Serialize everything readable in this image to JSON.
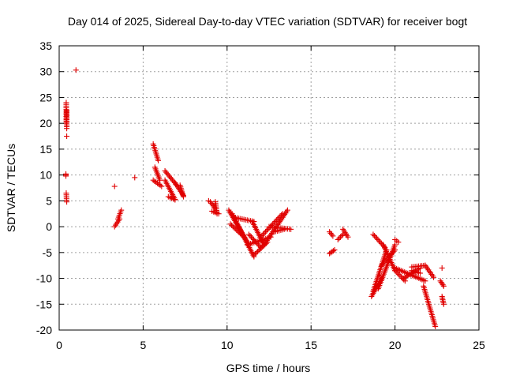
{
  "chart_data": {
    "type": "scatter",
    "title": "Day 014 of 2025, Sidereal Day-to-day VTEC variation (SDTVAR) for receiver bogt",
    "xlabel": "GPS time / hours",
    "ylabel": "SDTVAR / TECUs",
    "xlim": [
      0,
      25
    ],
    "ylim": [
      -20,
      35
    ],
    "xticks": [
      "0",
      "5",
      "10",
      "15",
      "20",
      "25"
    ],
    "yticks": [
      "-20",
      "-15",
      "-10",
      "-5",
      "0",
      "5",
      "10",
      "15",
      "20",
      "25",
      "30",
      "35"
    ],
    "grid": true,
    "marker": "+",
    "color": "#e00000",
    "series": [
      {
        "segments": [
          {
            "x": [
              0.42,
              0.42
            ],
            "y": [
              24.0,
              20.0
            ]
          },
          {
            "x": [
              0.45,
              0.45
            ],
            "y": [
              22.5,
              19.0
            ]
          },
          {
            "x": [
              0.4,
              0.4
            ],
            "y": [
              10.2,
              9.8
            ]
          },
          {
            "x": [
              0.42,
              0.45
            ],
            "y": [
              6.5,
              4.8
            ]
          },
          {
            "x": [
              3.3,
              3.6
            ],
            "y": [
              0.0,
              1.5
            ]
          },
          {
            "x": [
              3.5,
              3.7
            ],
            "y": [
              1.5,
              3.2
            ]
          },
          {
            "x": [
              5.6,
              5.9
            ],
            "y": [
              16.0,
              12.8
            ]
          },
          {
            "x": [
              5.7,
              6.0
            ],
            "y": [
              11.5,
              9.0
            ]
          },
          {
            "x": [
              5.6,
              6.1
            ],
            "y": [
              9.0,
              7.8
            ]
          },
          {
            "x": [
              6.3,
              7.0
            ],
            "y": [
              10.8,
              8.0
            ]
          },
          {
            "x": [
              6.3,
              6.9
            ],
            "y": [
              9.0,
              5.3
            ]
          },
          {
            "x": [
              6.5,
              6.9
            ],
            "y": [
              5.8,
              5.2
            ]
          },
          {
            "x": [
              6.9,
              7.4
            ],
            "y": [
              8.5,
              6.0
            ]
          },
          {
            "x": [
              7.2,
              7.4
            ],
            "y": [
              8.0,
              5.8
            ]
          },
          {
            "x": [
              9.0,
              9.3
            ],
            "y": [
              4.8,
              3.5
            ]
          },
          {
            "x": [
              9.3,
              9.4
            ],
            "y": [
              4.8,
              2.5
            ]
          },
          {
            "x": [
              9.1,
              9.5
            ],
            "y": [
              3.0,
              2.5
            ]
          },
          {
            "x": [
              10.1,
              11.3
            ],
            "y": [
              3.2,
              -3.5
            ]
          },
          {
            "x": [
              10.3,
              11.6
            ],
            "y": [
              2.5,
              -5.8
            ]
          },
          {
            "x": [
              10.2,
              11.0
            ],
            "y": [
              0.5,
              -2.0
            ]
          },
          {
            "x": [
              10.4,
              11.6
            ],
            "y": [
              1.8,
              1.0
            ]
          },
          {
            "x": [
              11.5,
              12.2
            ],
            "y": [
              1.0,
              -3.5
            ]
          },
          {
            "x": [
              11.2,
              12.6
            ],
            "y": [
              -3.5,
              -2.0
            ]
          },
          {
            "x": [
              11.6,
              12.4
            ],
            "y": [
              -5.5,
              -3.0
            ]
          },
          {
            "x": [
              11.3,
              12.0
            ],
            "y": [
              -1.5,
              -4.0
            ]
          },
          {
            "x": [
              12.2,
              13.6
            ],
            "y": [
              -3.5,
              3.2
            ]
          },
          {
            "x": [
              12.0,
              13.3
            ],
            "y": [
              -2.0,
              2.5
            ]
          },
          {
            "x": [
              12.5,
              13.8
            ],
            "y": [
              0.0,
              -0.5
            ]
          },
          {
            "x": [
              12.8,
              13.4
            ],
            "y": [
              -1.0,
              -0.5
            ]
          },
          {
            "x": [
              16.1,
              16.4
            ],
            "y": [
              -5.2,
              -4.5
            ]
          },
          {
            "x": [
              16.1,
              16.3
            ],
            "y": [
              -1.0,
              -1.8
            ]
          },
          {
            "x": [
              16.6,
              16.9
            ],
            "y": [
              -2.5,
              -1.5
            ]
          },
          {
            "x": [
              16.9,
              17.2
            ],
            "y": [
              -0.5,
              -2.0
            ]
          },
          {
            "x": [
              18.7,
              19.4
            ],
            "y": [
              -1.5,
              -4.0
            ]
          },
          {
            "x": [
              18.6,
              19.2
            ],
            "y": [
              -13.5,
              -10.0
            ]
          },
          {
            "x": [
              18.7,
              19.5
            ],
            "y": [
              -12.5,
              -4.5
            ]
          },
          {
            "x": [
              19.0,
              20.0
            ],
            "y": [
              -12.0,
              -3.5
            ]
          },
          {
            "x": [
              19.2,
              20.0
            ],
            "y": [
              -7.5,
              -4.5
            ]
          },
          {
            "x": [
              19.3,
              20.0
            ],
            "y": [
              -3.5,
              -8.5
            ]
          },
          {
            "x": [
              20.0,
              20.6
            ],
            "y": [
              -8.5,
              -10.5
            ]
          },
          {
            "x": [
              20.5,
              21.5
            ],
            "y": [
              -10.0,
              -8.0
            ]
          },
          {
            "x": [
              21.0,
              21.8
            ],
            "y": [
              -7.8,
              -7.5
            ]
          },
          {
            "x": [
              21.0,
              21.5
            ],
            "y": [
              -8.5,
              -9.0
            ]
          },
          {
            "x": [
              20.0,
              21.8
            ],
            "y": [
              -8.0,
              -10.5
            ]
          },
          {
            "x": [
              21.8,
              22.3
            ],
            "y": [
              -7.5,
              -9.8
            ]
          },
          {
            "x": [
              21.7,
              22.4
            ],
            "y": [
              -11.5,
              -19.3
            ]
          },
          {
            "x": [
              20.0,
              20.2
            ],
            "y": [
              -2.5,
              -3.0
            ]
          },
          {
            "x": [
              22.7,
              22.9
            ],
            "y": [
              -10.5,
              -11.5
            ]
          },
          {
            "x": [
              22.8,
              22.9
            ],
            "y": [
              -13.5,
              -15.0
            ]
          }
        ],
        "points": [
          {
            "x": 1.0,
            "y": 30.3
          },
          {
            "x": 0.45,
            "y": 17.5
          },
          {
            "x": 3.3,
            "y": 7.8
          },
          {
            "x": 4.5,
            "y": 9.5
          },
          {
            "x": 8.9,
            "y": 5.0
          },
          {
            "x": 22.8,
            "y": -8.0
          },
          {
            "x": 19.1,
            "y": -9.5
          }
        ]
      }
    ]
  }
}
